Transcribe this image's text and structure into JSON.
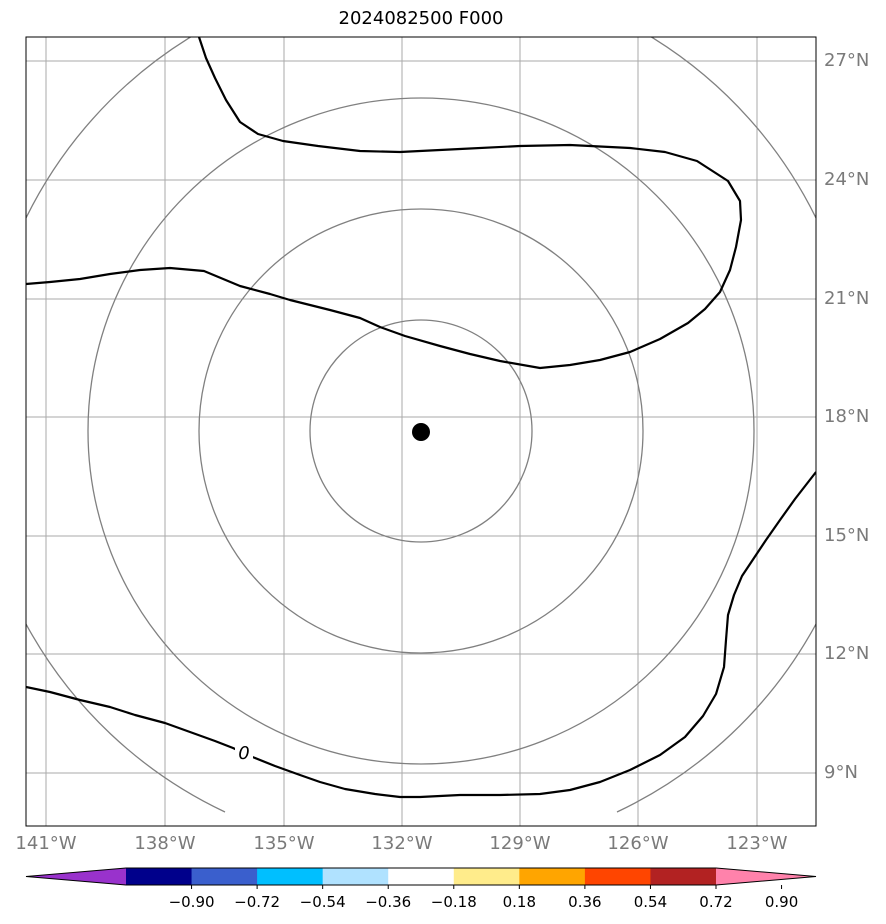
{
  "title": "2024082500 F000",
  "colors": {
    "grid": "#aaaaaa",
    "range_rings": "#808080",
    "contour": "#000000",
    "center_marker": "#000000",
    "tick_labels": "#7a7a7a"
  },
  "map": {
    "projection": "azimuthal, centered on storm",
    "center": {
      "lon": -131.5,
      "lat": 17.6
    },
    "lon_ticks": [
      {
        "lon": -141,
        "label": "141°W"
      },
      {
        "lon": -138,
        "label": "138°W"
      },
      {
        "lon": -135,
        "label": "135°W"
      },
      {
        "lon": -132,
        "label": "132°W"
      },
      {
        "lon": -129,
        "label": "129°W"
      },
      {
        "lon": -126,
        "label": "126°W"
      },
      {
        "lon": -123,
        "label": "123°W"
      }
    ],
    "lat_ticks": [
      {
        "lat": 27,
        "label": "27°N"
      },
      {
        "lat": 24,
        "label": "24°N"
      },
      {
        "lat": 21,
        "label": "21°N"
      },
      {
        "lat": 18,
        "label": "18°N"
      },
      {
        "lat": 15,
        "label": "15°N"
      },
      {
        "lat": 12,
        "label": "12°N"
      },
      {
        "lat": 9,
        "label": "9°N"
      }
    ],
    "contour_label": "0",
    "contour_value": 0
  },
  "colorbar": {
    "extend": "both",
    "colors": [
      "#9932cc",
      "#00008b",
      "#3a5fcd",
      "#00bfff",
      "#b0e2ff",
      "#ffffff",
      "#ffec8b",
      "#ffa500",
      "#ff4500",
      "#b22222",
      "#ff82ab"
    ],
    "tick_labels": [
      "−0.90",
      "−0.72",
      "−0.54",
      "−0.36",
      "−0.18",
      "0.18",
      "0.36",
      "0.54",
      "0.72",
      "0.90"
    ]
  }
}
